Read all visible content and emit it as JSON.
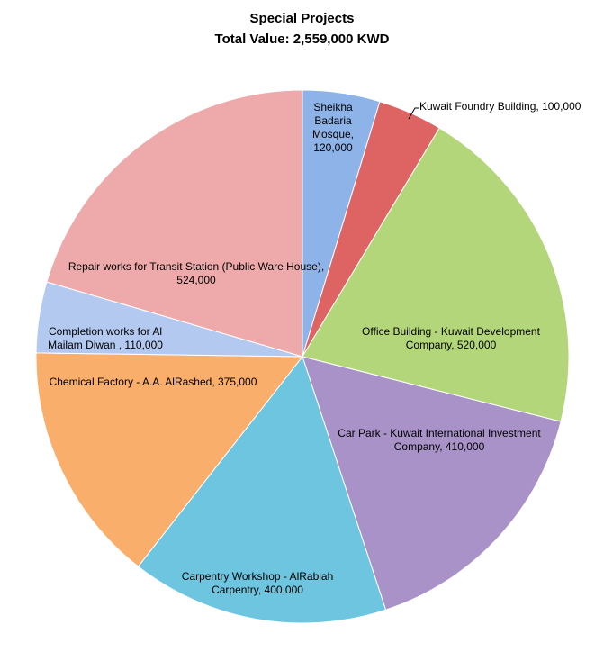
{
  "chart_data": {
    "type": "pie",
    "title": "Special Projects",
    "subtitle": "Total Value: 2,559,000 KWD",
    "values": [
      120000,
      100000,
      520000,
      410000,
      400000,
      375000,
      110000,
      524000
    ],
    "value_labels": [
      "Sheikha Badaria Mosque, 120,000",
      "Kuwait Foundry Building, 100,000",
      "Office Building - Kuwait Development Company, 520,000",
      "Car Park - Kuwait International Investment Company, 410,000",
      "Carpentry Workshop - AlRabiah Carpentry, 400,000",
      "Chemical Factory - A.A. AlRashed, 375,000",
      "Completion works for Al Mailam Diwan , 110,000",
      "Repair works for Transit Station (Public Ware House), 524,000"
    ],
    "colors": [
      "#8db3e8",
      "#de6464",
      "#b4d67a",
      "#a892c8",
      "#6ec5df",
      "#f9ae6c",
      "#b3c9f0",
      "#eeaaaa"
    ]
  }
}
